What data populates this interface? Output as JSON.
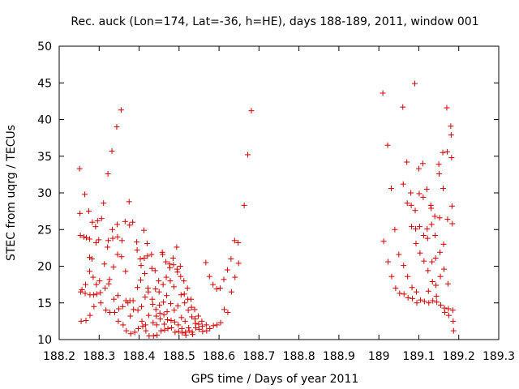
{
  "chart_data": {
    "type": "scatter",
    "title": "Rec. auck (Lon=174, Lat=-36, h=HE), days 188-189, 2011, window 001",
    "xlabel": "GPS time / Days of year 2011",
    "ylabel": "STEC from uqrg / TECUs",
    "xlim": [
      188.2,
      189.3
    ],
    "ylim": [
      10,
      50
    ],
    "xticks": [
      188.2,
      188.3,
      188.4,
      188.5,
      188.6,
      188.7,
      188.8,
      188.9,
      189,
      189.1,
      189.2,
      189.3
    ],
    "xtick_labels": [
      "188.2",
      "188.3",
      "188.4",
      "188.5",
      "188.6",
      "188.7",
      "188.8",
      "188.9",
      "189",
      "189.1",
      "189.2",
      "189.3"
    ],
    "yticks": [
      10,
      15,
      20,
      25,
      30,
      35,
      40,
      45,
      50
    ],
    "ytick_labels": [
      "10",
      "15",
      "20",
      "25",
      "30",
      "35",
      "40",
      "45",
      "50"
    ],
    "marker": "+",
    "color": "#d40000",
    "series": [
      {
        "name": "STEC",
        "points": [
          [
            188.251,
            33.3
          ],
          [
            188.252,
            27.2
          ],
          [
            188.253,
            24.2
          ],
          [
            188.254,
            16.5
          ],
          [
            188.255,
            12.5
          ],
          [
            188.257,
            16.8
          ],
          [
            188.262,
            24.0
          ],
          [
            188.264,
            29.8
          ],
          [
            188.265,
            16.3
          ],
          [
            188.266,
            17.5
          ],
          [
            188.267,
            12.6
          ],
          [
            188.268,
            23.9
          ],
          [
            188.274,
            27.5
          ],
          [
            188.276,
            23.7
          ],
          [
            188.276,
            21.2
          ],
          [
            188.276,
            19.3
          ],
          [
            188.277,
            16.1
          ],
          [
            188.277,
            13.3
          ],
          [
            188.282,
            21.0
          ],
          [
            188.283,
            26.0
          ],
          [
            188.285,
            18.5
          ],
          [
            188.286,
            16.1
          ],
          [
            188.287,
            14.5
          ],
          [
            188.291,
            25.4
          ],
          [
            188.292,
            23.2
          ],
          [
            188.293,
            17.5
          ],
          [
            188.294,
            16.2
          ],
          [
            188.296,
            26.2
          ],
          [
            188.299,
            23.6
          ],
          [
            188.301,
            18.0
          ],
          [
            188.303,
            16.4
          ],
          [
            188.304,
            15.0
          ],
          [
            188.306,
            26.5
          ],
          [
            188.311,
            28.6
          ],
          [
            188.313,
            20.3
          ],
          [
            188.315,
            17.0
          ],
          [
            188.317,
            14.0
          ],
          [
            188.321,
            22.6
          ],
          [
            188.322,
            32.6
          ],
          [
            188.323,
            23.5
          ],
          [
            188.324,
            17.6
          ],
          [
            188.326,
            18.2
          ],
          [
            188.327,
            13.7
          ],
          [
            188.332,
            35.7
          ],
          [
            188.333,
            25.0
          ],
          [
            188.334,
            23.8
          ],
          [
            188.336,
            19.9
          ],
          [
            188.337,
            15.5
          ],
          [
            188.339,
            13.7
          ],
          [
            188.344,
            39.0
          ],
          [
            188.345,
            25.7
          ],
          [
            188.346,
            24.0
          ],
          [
            188.346,
            21.6
          ],
          [
            188.347,
            16.0
          ],
          [
            188.348,
            12.5
          ],
          [
            188.349,
            14.2
          ],
          [
            188.355,
            41.3
          ],
          [
            188.356,
            21.3
          ],
          [
            188.357,
            23.5
          ],
          [
            188.359,
            14.5
          ],
          [
            188.36,
            12.0
          ],
          [
            188.365,
            26.1
          ],
          [
            188.366,
            19.3
          ],
          [
            188.367,
            15.3
          ],
          [
            188.368,
            11.2
          ],
          [
            188.372,
            15.0
          ],
          [
            188.375,
            28.8
          ],
          [
            188.376,
            25.6
          ],
          [
            188.377,
            15.3
          ],
          [
            188.378,
            13.2
          ],
          [
            188.379,
            10.8
          ],
          [
            188.384,
            26.0
          ],
          [
            188.385,
            15.3
          ],
          [
            188.386,
            14.1
          ],
          [
            188.389,
            11.0
          ],
          [
            188.394,
            23.3
          ],
          [
            188.395,
            22.2
          ],
          [
            188.396,
            17.1
          ],
          [
            188.397,
            14.0
          ],
          [
            188.398,
            11.5
          ],
          [
            188.403,
            21.0
          ],
          [
            188.404,
            18.1
          ],
          [
            188.405,
            20.1
          ],
          [
            188.406,
            14.5
          ],
          [
            188.407,
            12.5
          ],
          [
            188.409,
            11.8
          ],
          [
            188.412,
            24.9
          ],
          [
            188.413,
            21.1
          ],
          [
            188.414,
            19.0
          ],
          [
            188.415,
            15.8
          ],
          [
            188.416,
            12.0
          ],
          [
            188.417,
            11.2
          ],
          [
            188.42,
            23.1
          ],
          [
            188.421,
            21.4
          ],
          [
            188.422,
            17.0
          ],
          [
            188.423,
            16.5
          ],
          [
            188.424,
            13.3
          ],
          [
            188.425,
            10.5
          ],
          [
            188.431,
            21.6
          ],
          [
            188.432,
            19.7
          ],
          [
            188.433,
            15.5
          ],
          [
            188.434,
            14.8
          ],
          [
            188.435,
            12.3
          ],
          [
            188.436,
            10.5
          ],
          [
            188.44,
            19.4
          ],
          [
            188.441,
            16.9
          ],
          [
            188.442,
            14.1
          ],
          [
            188.443,
            13.2
          ],
          [
            188.444,
            12.0
          ],
          [
            188.445,
            10.6
          ],
          [
            188.449,
            18.0
          ],
          [
            188.45,
            16.5
          ],
          [
            188.451,
            14.7
          ],
          [
            188.452,
            13.6
          ],
          [
            188.453,
            12.8
          ],
          [
            188.455,
            11.2
          ],
          [
            188.458,
            21.9
          ],
          [
            188.459,
            21.6
          ],
          [
            188.46,
            17.5
          ],
          [
            188.461,
            15.1
          ],
          [
            188.462,
            13.4
          ],
          [
            188.463,
            12.1
          ],
          [
            188.464,
            11.3
          ],
          [
            188.467,
            20.6
          ],
          [
            188.468,
            18.5
          ],
          [
            188.469,
            16.0
          ],
          [
            188.47,
            13.8
          ],
          [
            188.471,
            12.7
          ],
          [
            188.472,
            11.5
          ],
          [
            188.476,
            20.3
          ],
          [
            188.477,
            19.8
          ],
          [
            188.478,
            18.0
          ],
          [
            188.479,
            14.9
          ],
          [
            188.48,
            12.6
          ],
          [
            188.481,
            11.6
          ],
          [
            188.485,
            21.1
          ],
          [
            188.486,
            20.2
          ],
          [
            188.487,
            17.2
          ],
          [
            188.488,
            14.0
          ],
          [
            188.489,
            12.4
          ],
          [
            188.49,
            11.0
          ],
          [
            188.494,
            22.6
          ],
          [
            188.495,
            19.6
          ],
          [
            188.496,
            19.2
          ],
          [
            188.497,
            14.6
          ],
          [
            188.498,
            12.0
          ],
          [
            188.499,
            11.1
          ],
          [
            188.503,
            20.0
          ],
          [
            188.504,
            18.6
          ],
          [
            188.505,
            16.1
          ],
          [
            188.506,
            13.0
          ],
          [
            188.507,
            11.5
          ],
          [
            188.508,
            10.9
          ],
          [
            188.512,
            18.0
          ],
          [
            188.513,
            16.2
          ],
          [
            188.514,
            15.0
          ],
          [
            188.515,
            12.5
          ],
          [
            188.516,
            11.0
          ],
          [
            188.517,
            10.6
          ],
          [
            188.521,
            17.0
          ],
          [
            188.522,
            15.5
          ],
          [
            188.523,
            14.0
          ],
          [
            188.524,
            11.6
          ],
          [
            188.525,
            11.2
          ],
          [
            188.53,
            15.5
          ],
          [
            188.531,
            14.4
          ],
          [
            188.532,
            13.1
          ],
          [
            188.533,
            11.0
          ],
          [
            188.534,
            10.7
          ],
          [
            188.539,
            14.1
          ],
          [
            188.54,
            12.8
          ],
          [
            188.541,
            12.2
          ],
          [
            188.542,
            11.6
          ],
          [
            188.548,
            13.2
          ],
          [
            188.549,
            12.1
          ],
          [
            188.55,
            11.4
          ],
          [
            188.557,
            12.5
          ],
          [
            188.558,
            11.8
          ],
          [
            188.559,
            11.1
          ],
          [
            188.567,
            20.5
          ],
          [
            188.568,
            12.0
          ],
          [
            188.569,
            11.2
          ],
          [
            188.576,
            18.6
          ],
          [
            188.577,
            11.5
          ],
          [
            188.585,
            17.5
          ],
          [
            188.586,
            11.9
          ],
          [
            188.594,
            16.9
          ],
          [
            188.595,
            12.0
          ],
          [
            188.603,
            17.0
          ],
          [
            188.604,
            12.3
          ],
          [
            188.612,
            18.2
          ],
          [
            188.613,
            14.1
          ],
          [
            188.621,
            19.5
          ],
          [
            188.622,
            13.7
          ],
          [
            188.63,
            21.0
          ],
          [
            188.631,
            16.5
          ],
          [
            188.639,
            23.5
          ],
          [
            188.64,
            18.5
          ],
          [
            188.648,
            23.2
          ],
          [
            188.649,
            20.4
          ],
          [
            188.663,
            28.3
          ],
          [
            188.672,
            35.2
          ],
          [
            188.681,
            41.2
          ],
          [
            189.01,
            43.6
          ],
          [
            189.012,
            23.4
          ],
          [
            189.022,
            36.5
          ],
          [
            189.023,
            20.6
          ],
          [
            189.031,
            30.6
          ],
          [
            189.032,
            18.6
          ],
          [
            189.04,
            25.0
          ],
          [
            189.042,
            17.0
          ],
          [
            189.05,
            21.6
          ],
          [
            189.052,
            16.3
          ],
          [
            189.06,
            41.7
          ],
          [
            189.061,
            31.2
          ],
          [
            189.062,
            20.1
          ],
          [
            189.063,
            16.2
          ],
          [
            189.07,
            34.2
          ],
          [
            189.071,
            28.6
          ],
          [
            189.072,
            18.6
          ],
          [
            189.073,
            15.7
          ],
          [
            189.08,
            30.0
          ],
          [
            189.081,
            28.3
          ],
          [
            189.082,
            25.4
          ],
          [
            189.083,
            17.1
          ],
          [
            189.084,
            15.6
          ],
          [
            189.09,
            44.9
          ],
          [
            189.091,
            27.6
          ],
          [
            189.092,
            25.1
          ],
          [
            189.093,
            23.1
          ],
          [
            189.094,
            16.5
          ],
          [
            189.095,
            15.0
          ],
          [
            189.1,
            33.3
          ],
          [
            189.101,
            29.9
          ],
          [
            189.102,
            25.4
          ],
          [
            189.103,
            21.8
          ],
          [
            189.104,
            15.4
          ],
          [
            189.11,
            34.0
          ],
          [
            189.111,
            29.4
          ],
          [
            189.112,
            24.2
          ],
          [
            189.113,
            20.7
          ],
          [
            189.114,
            15.2
          ],
          [
            189.12,
            30.5
          ],
          [
            189.121,
            25.1
          ],
          [
            189.122,
            23.8
          ],
          [
            189.123,
            19.4
          ],
          [
            189.124,
            16.6
          ],
          [
            189.125,
            15.0
          ],
          [
            189.13,
            28.3
          ],
          [
            189.131,
            27.9
          ],
          [
            189.132,
            25.7
          ],
          [
            189.133,
            20.6
          ],
          [
            189.134,
            17.9
          ],
          [
            189.135,
            15.3
          ],
          [
            189.14,
            26.8
          ],
          [
            189.141,
            24.2
          ],
          [
            189.142,
            21.1
          ],
          [
            189.143,
            17.4
          ],
          [
            189.144,
            15.9
          ],
          [
            189.145,
            15.1
          ],
          [
            189.15,
            33.9
          ],
          [
            189.151,
            32.6
          ],
          [
            189.152,
            26.6
          ],
          [
            189.153,
            21.9
          ],
          [
            189.154,
            18.6
          ],
          [
            189.155,
            14.7
          ],
          [
            189.16,
            35.5
          ],
          [
            189.161,
            30.6
          ],
          [
            189.162,
            23.0
          ],
          [
            189.163,
            19.6
          ],
          [
            189.164,
            14.3
          ],
          [
            189.165,
            13.7
          ],
          [
            189.17,
            41.6
          ],
          [
            189.171,
            35.6
          ],
          [
            189.172,
            26.4
          ],
          [
            189.173,
            17.6
          ],
          [
            189.174,
            14.2
          ],
          [
            189.175,
            13.3
          ],
          [
            189.18,
            39.1
          ],
          [
            189.181,
            37.9
          ],
          [
            189.182,
            34.8
          ],
          [
            189.183,
            28.2
          ],
          [
            189.184,
            25.8
          ],
          [
            189.185,
            14.0
          ],
          [
            189.186,
            12.5
          ],
          [
            189.187,
            11.2
          ]
        ]
      }
    ]
  }
}
